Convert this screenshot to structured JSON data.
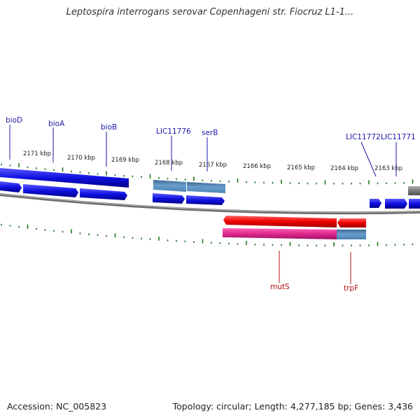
{
  "title": "Leptospira interrogans serovar Copenhageni str. Fiocruz L1-1...",
  "footer": {
    "accession": "Accession: NC_005823",
    "summary": "Topology: circular; Length: 4,277,185 bp; Genes: 3,436"
  },
  "colors": {
    "forward_gene": "#1010e0",
    "forward_label": "#1a1aa6",
    "reverse_gene": "#ee0000",
    "reverse_label": "#b01010",
    "cds_blue": "#4a86b4",
    "cds_pink": "#e0288c",
    "tick_green": "#1e7a1e",
    "backbone": "#808080",
    "other_feature": "#808080"
  },
  "kbp_ticks": [
    {
      "label": "2171 kbp"
    },
    {
      "label": "2170 kbp"
    },
    {
      "label": "2169 kbp"
    },
    {
      "label": "2168 kbp"
    },
    {
      "label": "2167 kbp"
    },
    {
      "label": "2166 kbp"
    },
    {
      "label": "2165 kbp"
    },
    {
      "label": "2164 kbp"
    },
    {
      "label": "2163 kbp"
    }
  ],
  "forward_labels": [
    {
      "name": "bioD"
    },
    {
      "name": "bioA"
    },
    {
      "name": "bioB"
    },
    {
      "name": "LIC11776"
    },
    {
      "name": "serB"
    },
    {
      "name": "LIC11772"
    },
    {
      "name": "LIC11771"
    }
  ],
  "reverse_labels": [
    {
      "name": "mutS"
    },
    {
      "name": "trpF"
    }
  ]
}
